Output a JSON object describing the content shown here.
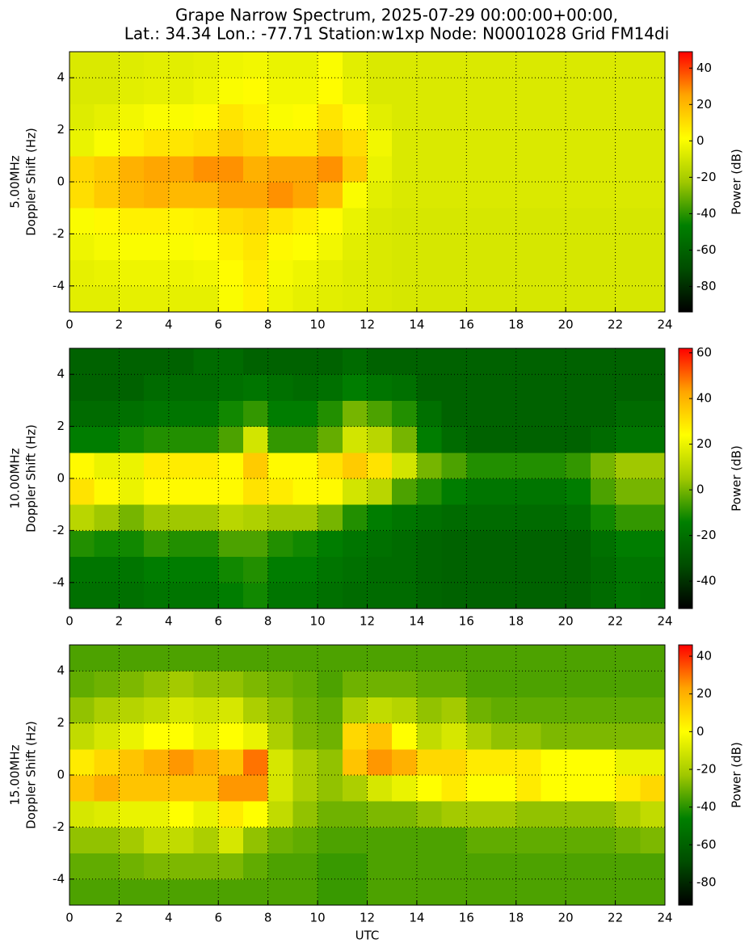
{
  "chart_data": [
    {
      "type": "heatmap",
      "title": [
        "Grape Narrow Spectrum, 2025-07-29 00:00:00+00:00,",
        "Lat.: 34.34 Lon.: -77.71 Station:w1xp Node: N0001028 Grid FM14di"
      ],
      "ylabel": [
        "5.00MHz",
        "Doppler Shift (Hz)"
      ],
      "clabel": "Power (dB)",
      "xlim": [
        0,
        24
      ],
      "xticks": [
        0,
        2,
        4,
        6,
        8,
        10,
        12,
        14,
        16,
        18,
        20,
        22,
        24
      ],
      "ylim": [
        -5,
        5
      ],
      "yticks": [
        -4,
        -2,
        0,
        2,
        4
      ],
      "grid": true,
      "zlim": [
        -94,
        49
      ],
      "cticks": [
        -80,
        -60,
        -40,
        -20,
        0,
        20,
        40
      ],
      "colormap": [
        "#000000",
        "#004d00",
        "#008000",
        "#a0c800",
        "#ffff00",
        "#ffa500",
        "#ff0000"
      ],
      "xbins": [
        0,
        1,
        2,
        3,
        4,
        5,
        6,
        7,
        8,
        9,
        10,
        11,
        12,
        13,
        14,
        15,
        16,
        17,
        18,
        19,
        20,
        21,
        22,
        23,
        24
      ],
      "ybins": [
        -5,
        -4,
        -3,
        -2,
        -1,
        0,
        1,
        2,
        3,
        4,
        5
      ],
      "z": [
        [
          -6,
          -6,
          -5,
          -5,
          -5,
          -5,
          0,
          5,
          -3,
          -5,
          -6,
          -7,
          -8,
          -9,
          -9,
          -9,
          -9,
          -9,
          -9,
          -9,
          -9,
          -9,
          -9,
          -9
        ],
        [
          -5,
          -4,
          -3,
          -3,
          -3,
          -2,
          2,
          6,
          -1,
          -3,
          -5,
          -7,
          -8,
          -9,
          -9,
          -9,
          -9,
          -9,
          -9,
          -9,
          -9,
          -9,
          -9,
          -9
        ],
        [
          -3,
          -1,
          0,
          0,
          0,
          2,
          5,
          8,
          3,
          1,
          -2,
          -6,
          -8,
          -9,
          -9,
          -9,
          -9,
          -9,
          -9,
          -9,
          -9,
          -9,
          -9,
          -9
        ],
        [
          0,
          3,
          5,
          5,
          4,
          5,
          10,
          12,
          8,
          5,
          2,
          -4,
          -8,
          -9,
          -9,
          -9,
          -9,
          -9,
          -9,
          -9,
          -9,
          -9,
          -9,
          -9
        ],
        [
          10,
          15,
          20,
          22,
          20,
          20,
          25,
          25,
          28,
          25,
          18,
          0,
          -6,
          -8,
          -8,
          -8,
          -8,
          -8,
          -8,
          -8,
          -8,
          -8,
          -8,
          -8
        ],
        [
          12,
          15,
          22,
          25,
          25,
          28,
          28,
          22,
          25,
          25,
          28,
          15,
          -4,
          -8,
          -8,
          -8,
          -8,
          -8,
          -8,
          -8,
          -8,
          -8,
          -8,
          -8
        ],
        [
          -4,
          0,
          5,
          8,
          8,
          10,
          15,
          12,
          8,
          8,
          15,
          10,
          -2,
          -8,
          -8,
          -8,
          -8,
          -8,
          -8,
          -8,
          -8,
          -8,
          -8,
          -8
        ],
        [
          -7,
          -5,
          -2,
          0,
          0,
          2,
          8,
          5,
          0,
          2,
          8,
          3,
          -6,
          -8,
          -8,
          -8,
          -8,
          -8,
          -8,
          -8,
          -8,
          -8,
          -8,
          -8
        ],
        [
          -8,
          -8,
          -6,
          -5,
          -5,
          -3,
          0,
          2,
          -2,
          -2,
          2,
          -4,
          -8,
          -8,
          -8,
          -8,
          -8,
          -8,
          -8,
          -8,
          -8,
          -8,
          -8,
          -8
        ],
        [
          -8,
          -8,
          -7,
          -6,
          -6,
          -5,
          -3,
          -2,
          -4,
          -4,
          0,
          -6,
          -8,
          -8,
          -8,
          -8,
          -8,
          -8,
          -8,
          -8,
          -8,
          -8,
          -8,
          -8
        ]
      ]
    },
    {
      "type": "heatmap",
      "ylabel": [
        "10.00MHz",
        "Doppler Shift (Hz)"
      ],
      "clabel": "Power (dB)",
      "xlim": [
        0,
        24
      ],
      "xticks": [
        0,
        2,
        4,
        6,
        8,
        10,
        12,
        14,
        16,
        18,
        20,
        22,
        24
      ],
      "ylim": [
        -5,
        5
      ],
      "yticks": [
        -4,
        -2,
        0,
        2,
        4
      ],
      "grid": true,
      "zlim": [
        -52,
        62
      ],
      "cticks": [
        -40,
        -20,
        0,
        20,
        40,
        60
      ],
      "colormap": [
        "#000000",
        "#004d00",
        "#008000",
        "#a0c800",
        "#ffff00",
        "#ffa500",
        "#ff0000"
      ],
      "xbins": [
        0,
        1,
        2,
        3,
        4,
        5,
        6,
        7,
        8,
        9,
        10,
        11,
        12,
        13,
        14,
        15,
        16,
        17,
        18,
        19,
        20,
        21,
        22,
        23,
        24
      ],
      "ybins": [
        -5,
        -4,
        -3,
        -2,
        -1,
        0,
        1,
        2,
        3,
        4,
        5
      ],
      "z": [
        [
          -20,
          -20,
          -20,
          -18,
          -18,
          -18,
          -15,
          -12,
          -18,
          -18,
          -20,
          -22,
          -22,
          -22,
          -24,
          -25,
          -25,
          -25,
          -25,
          -25,
          -25,
          -22,
          -18,
          -20
        ],
        [
          -18,
          -18,
          -18,
          -15,
          -15,
          -15,
          -12,
          -10,
          -15,
          -15,
          -18,
          -20,
          -22,
          -22,
          -24,
          -25,
          -25,
          -25,
          -25,
          -25,
          -25,
          -22,
          -18,
          -18
        ],
        [
          -10,
          -12,
          -12,
          -8,
          -10,
          -10,
          -5,
          -5,
          -10,
          -12,
          -15,
          -18,
          -20,
          -22,
          -24,
          -25,
          -25,
          -25,
          -25,
          -25,
          -25,
          -20,
          -15,
          -15
        ],
        [
          10,
          5,
          0,
          5,
          5,
          5,
          10,
          8,
          5,
          5,
          0,
          -10,
          -15,
          -18,
          -20,
          -22,
          -22,
          -22,
          -22,
          -22,
          -20,
          -12,
          -8,
          -8
        ],
        [
          30,
          25,
          20,
          25,
          25,
          25,
          25,
          30,
          28,
          25,
          25,
          15,
          10,
          -5,
          -10,
          -15,
          -18,
          -18,
          -18,
          -18,
          -15,
          -5,
          0,
          0
        ],
        [
          25,
          20,
          20,
          28,
          28,
          28,
          25,
          35,
          25,
          25,
          30,
          35,
          30,
          15,
          0,
          -5,
          -10,
          -10,
          -10,
          -10,
          -8,
          0,
          5,
          5
        ],
        [
          -15,
          -15,
          -12,
          -10,
          -10,
          -10,
          -5,
          15,
          -8,
          -8,
          -2,
          15,
          10,
          0,
          -15,
          -22,
          -25,
          -25,
          -25,
          -25,
          -25,
          -22,
          -18,
          -18
        ],
        [
          -22,
          -22,
          -20,
          -18,
          -18,
          -18,
          -12,
          -8,
          -15,
          -15,
          -10,
          0,
          -5,
          -10,
          -20,
          -25,
          -25,
          -25,
          -25,
          -25,
          -25,
          -25,
          -22,
          -22
        ],
        [
          -25,
          -25,
          -25,
          -22,
          -22,
          -22,
          -20,
          -18,
          -20,
          -22,
          -20,
          -15,
          -18,
          -20,
          -25,
          -25,
          -25,
          -25,
          -25,
          -25,
          -25,
          -25,
          -25,
          -25
        ],
        [
          -25,
          -25,
          -25,
          -25,
          -25,
          -22,
          -22,
          -25,
          -25,
          -25,
          -25,
          -22,
          -25,
          -25,
          -25,
          -25,
          -25,
          -25,
          -25,
          -25,
          -25,
          -25,
          -25,
          -25
        ]
      ]
    },
    {
      "type": "heatmap",
      "ylabel": [
        "15.00MHz",
        "Doppler Shift (Hz)"
      ],
      "clabel": "Power (dB)",
      "xlabel": "UTC",
      "xlim": [
        0,
        24
      ],
      "xticks": [
        0,
        2,
        4,
        6,
        8,
        10,
        12,
        14,
        16,
        18,
        20,
        22,
        24
      ],
      "ylim": [
        -5,
        5
      ],
      "yticks": [
        -4,
        -2,
        0,
        2,
        4
      ],
      "grid": true,
      "zlim": [
        -92,
        46
      ],
      "cticks": [
        -80,
        -60,
        -40,
        -20,
        0,
        20,
        40
      ],
      "colormap": [
        "#000000",
        "#004d00",
        "#008000",
        "#a0c800",
        "#ffff00",
        "#ffa500",
        "#ff0000"
      ],
      "xbins": [
        0,
        1,
        2,
        3,
        4,
        5,
        6,
        7,
        8,
        9,
        10,
        11,
        12,
        13,
        14,
        15,
        16,
        17,
        18,
        19,
        20,
        21,
        22,
        23,
        24
      ],
      "ybins": [
        -5,
        -4,
        -3,
        -2,
        -1,
        0,
        1,
        2,
        3,
        4,
        5
      ],
      "z": [
        [
          -35,
          -35,
          -35,
          -35,
          -35,
          -35,
          -35,
          -35,
          -35,
          -35,
          -38,
          -38,
          -35,
          -35,
          -35,
          -35,
          -35,
          -35,
          -35,
          -35,
          -35,
          -35,
          -35,
          -35
        ],
        [
          -32,
          -32,
          -30,
          -28,
          -28,
          -28,
          -28,
          -32,
          -35,
          -35,
          -38,
          -38,
          -35,
          -35,
          -35,
          -35,
          -35,
          -35,
          -35,
          -35,
          -35,
          -35,
          -35,
          -35
        ],
        [
          -25,
          -25,
          -22,
          -15,
          -15,
          -20,
          -10,
          -25,
          -30,
          -32,
          -35,
          -35,
          -35,
          -35,
          -35,
          -35,
          -32,
          -32,
          -32,
          -32,
          -32,
          -32,
          -30,
          -28
        ],
        [
          -10,
          -8,
          -5,
          -5,
          0,
          -5,
          5,
          0,
          -15,
          -25,
          -30,
          -30,
          -28,
          -28,
          -25,
          -22,
          -22,
          -22,
          -25,
          -25,
          -25,
          -25,
          -20,
          -15
        ],
        [
          15,
          20,
          15,
          15,
          15,
          15,
          25,
          25,
          -10,
          -20,
          -25,
          -20,
          -10,
          -5,
          0,
          5,
          0,
          0,
          5,
          0,
          0,
          0,
          5,
          10
        ],
        [
          5,
          10,
          15,
          20,
          25,
          20,
          15,
          30,
          -10,
          -20,
          -25,
          15,
          25,
          20,
          10,
          10,
          5,
          5,
          5,
          0,
          0,
          0,
          -5,
          -5
        ],
        [
          -15,
          -10,
          -5,
          0,
          0,
          -5,
          0,
          -5,
          -20,
          -28,
          -30,
          10,
          15,
          0,
          -15,
          -10,
          -20,
          -25,
          -25,
          -28,
          -28,
          -28,
          -28,
          -28
        ],
        [
          -25,
          -20,
          -18,
          -15,
          -10,
          -12,
          -10,
          -20,
          -25,
          -30,
          -32,
          -20,
          -15,
          -18,
          -25,
          -22,
          -30,
          -32,
          -32,
          -32,
          -32,
          -32,
          -32,
          -32
        ],
        [
          -32,
          -30,
          -28,
          -25,
          -22,
          -25,
          -25,
          -28,
          -30,
          -32,
          -35,
          -30,
          -30,
          -30,
          -32,
          -32,
          -35,
          -35,
          -35,
          -35,
          -35,
          -35,
          -35,
          -35
        ],
        [
          -35,
          -35,
          -35,
          -35,
          -35,
          -35,
          -35,
          -35,
          -35,
          -35,
          -35,
          -35,
          -35,
          -35,
          -35,
          -35,
          -35,
          -35,
          -35,
          -35,
          -35,
          -35,
          -35,
          -35
        ]
      ]
    }
  ]
}
